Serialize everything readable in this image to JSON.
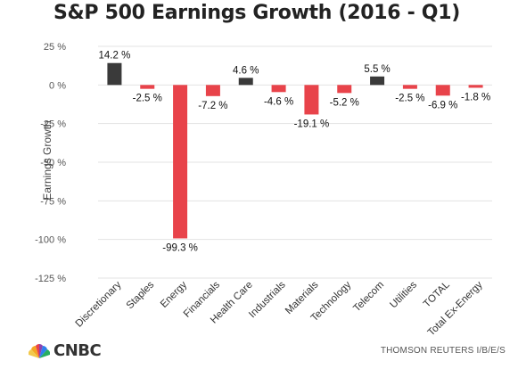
{
  "brand": {
    "logo_text": "CNBC",
    "source": "THOMSON REUTERS I/B/E/S"
  },
  "colors": {
    "positive": "#3a3a3a",
    "negative": "#e8434a",
    "grid": "#e3e3e3"
  },
  "chart_data": {
    "type": "bar",
    "title": "S&P 500 Earnings Growth (2016 - Q1)",
    "ylabel": "Earnings Growth",
    "xlabel": "",
    "ylim": [
      -125,
      25
    ],
    "yticks": [
      25,
      0,
      -25,
      -50,
      -75,
      -100,
      -125
    ],
    "ytick_labels": [
      "25 %",
      "0 %",
      "-25 %",
      "-50 %",
      "-75 %",
      "-100 %",
      "-125 %"
    ],
    "grid": true,
    "categories": [
      "Discretionary",
      "Staples",
      "Energy",
      "Financials",
      "Health Care",
      "Industrials",
      "Materials",
      "Technology",
      "Telecom",
      "Utilities",
      "TOTAL",
      "Total Ex-Energy"
    ],
    "values": [
      14.2,
      -2.5,
      -99.3,
      -7.2,
      4.6,
      -4.6,
      -19.1,
      -5.2,
      5.5,
      -2.5,
      -6.9,
      -1.8
    ],
    "data_labels": [
      "14.2 %",
      "-2.5 %",
      "-99.3 %",
      "-7.2 %",
      "4.6 %",
      "-4.6 %",
      "-19.1 %",
      "-5.2 %",
      "5.5 %",
      "-2.5 %",
      "-6.9 %",
      "-1.8 %"
    ]
  }
}
